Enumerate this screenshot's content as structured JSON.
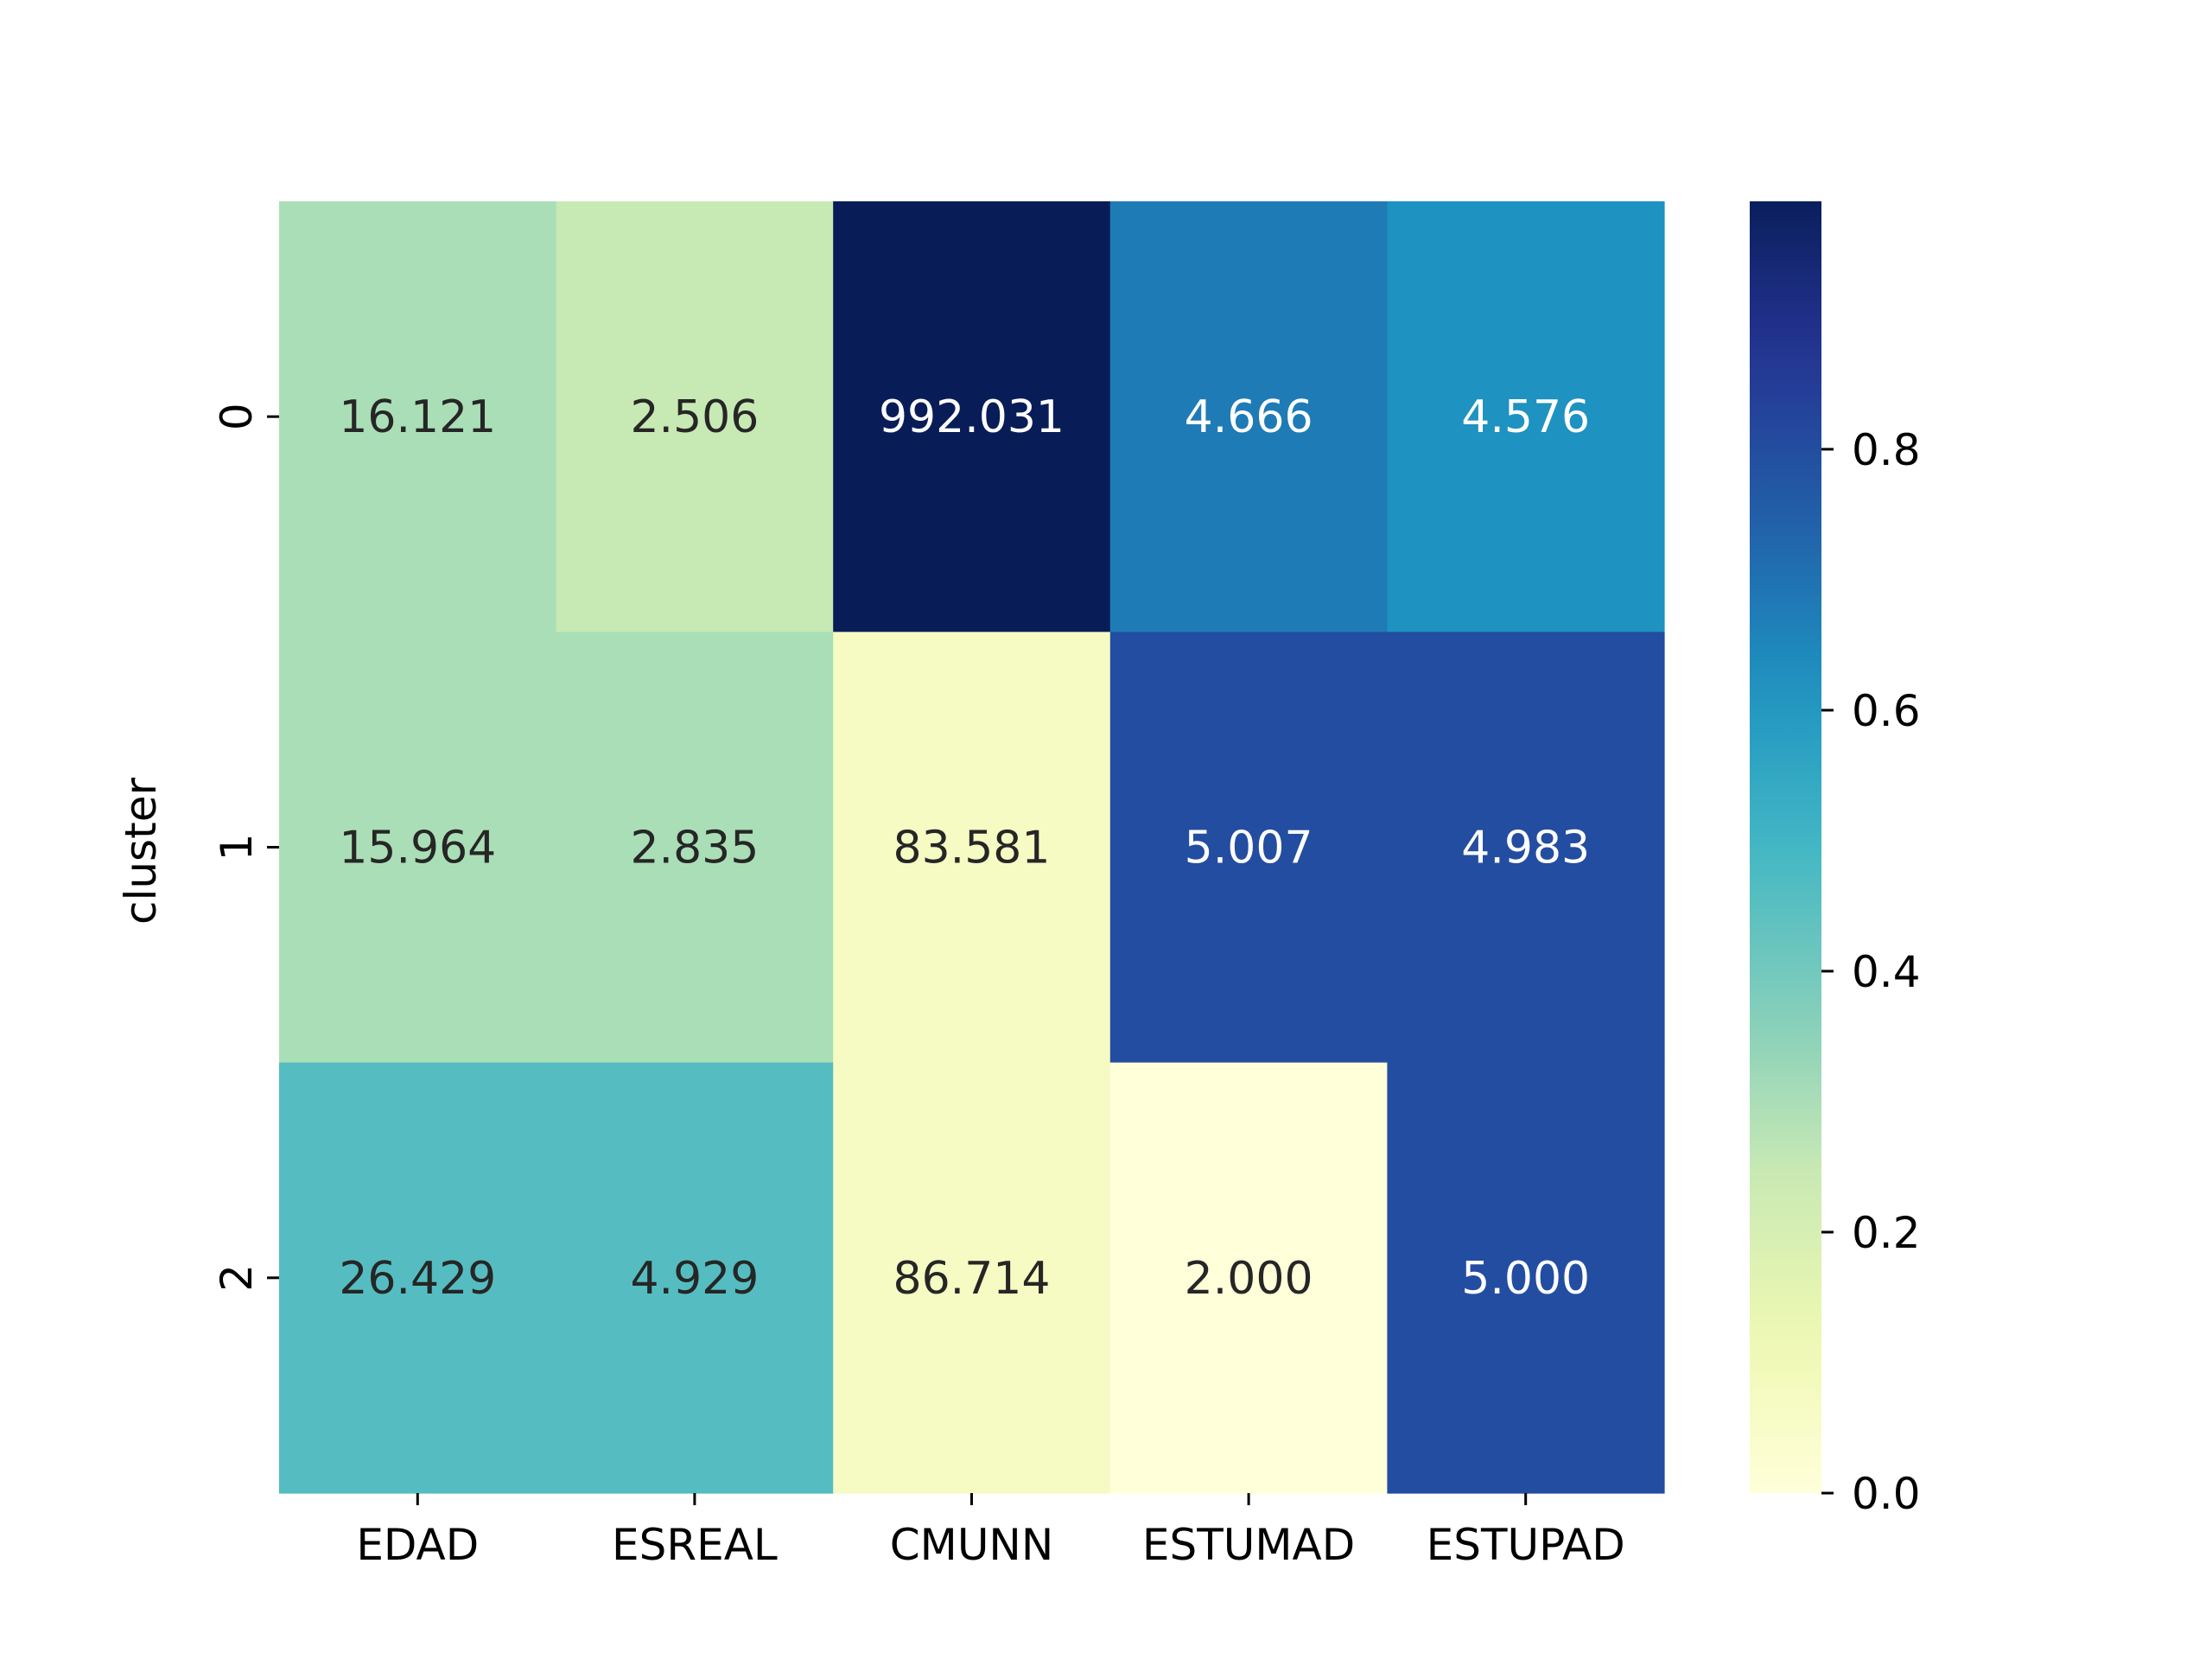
{
  "chart_data": {
    "type": "heatmap",
    "title": "",
    "xlabel": "",
    "ylabel": "cluster",
    "x_categories": [
      "EDAD",
      "ESREAL",
      "CMUNN",
      "ESTUMAD",
      "ESTUPAD"
    ],
    "y_categories": [
      "0",
      "1",
      "2"
    ],
    "annotations": [
      [
        "16.121",
        "2.506",
        "992.031",
        "4.666",
        "4.576"
      ],
      [
        "15.964",
        "2.835",
        "83.581",
        "5.007",
        "4.983"
      ],
      [
        "26.429",
        "4.929",
        "86.714",
        "2.000",
        "5.000"
      ]
    ],
    "values": [
      [
        0.3,
        0.25,
        1.0,
        0.68,
        0.62
      ],
      [
        0.3,
        0.3,
        0.07,
        0.8,
        0.8
      ],
      [
        0.46,
        0.46,
        0.07,
        0.0,
        0.8
      ]
    ],
    "colormap": "YlGnBu",
    "colorbar": {
      "range": [
        0.0,
        0.99
      ],
      "ticks": [
        0.0,
        0.2,
        0.4,
        0.6,
        0.8
      ],
      "tick_labels": [
        "0.0",
        "0.2",
        "0.4",
        "0.6",
        "0.8"
      ]
    },
    "grid": false,
    "legend": "colorbar-right"
  }
}
